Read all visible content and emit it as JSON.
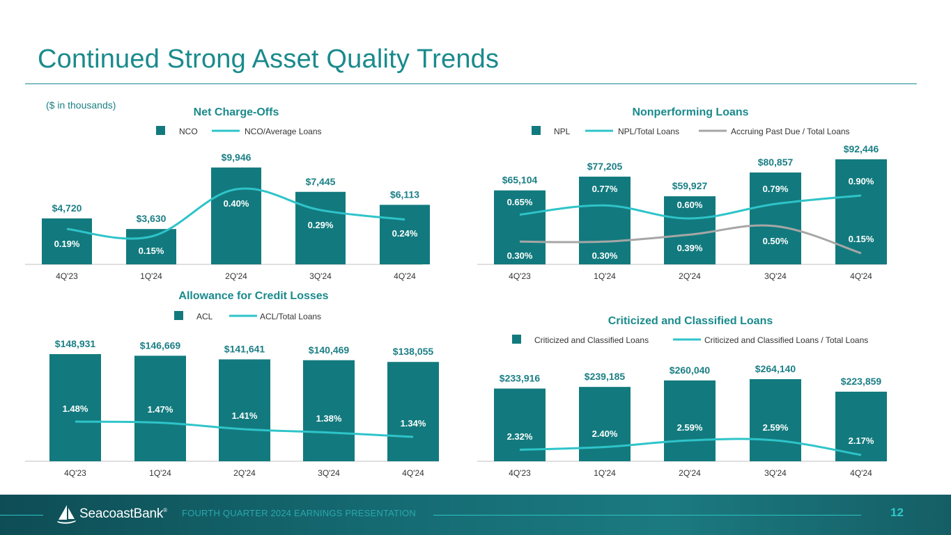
{
  "title": "Continued Strong Asset Quality Trends",
  "units_note": "($ in thousands)",
  "colors": {
    "bar": "#127a7e",
    "line": "#2ec4c9",
    "gray_line": "#a6a6a6",
    "title": "#1a8a8c",
    "label": "#1b7f85"
  },
  "chart_data": [
    {
      "id": "nco",
      "type": "bar",
      "title": "Net Charge-Offs",
      "categories": [
        "4Q'23",
        "1Q'24",
        "2Q'24",
        "3Q'24",
        "4Q'24"
      ],
      "legend": [
        "NCO",
        "NCO/Average Loans"
      ],
      "series": [
        {
          "name": "NCO",
          "kind": "bar",
          "values": [
            4720,
            3630,
            9946,
            7445,
            6113
          ],
          "labels": [
            "$4,720",
            "$3,630",
            "$9,946",
            "$7,445",
            "$6,113"
          ]
        },
        {
          "name": "NCO/Average Loans",
          "kind": "line",
          "values": [
            0.19,
            0.15,
            0.4,
            0.29,
            0.24
          ],
          "labels": [
            "0.19%",
            "0.15%",
            "0.40%",
            "0.29%",
            "0.24%"
          ]
        }
      ]
    },
    {
      "id": "npl",
      "type": "bar",
      "title": "Nonperforming Loans",
      "categories": [
        "4Q'23",
        "1Q'24",
        "2Q'24",
        "3Q'24",
        "4Q'24"
      ],
      "legend": [
        "NPL",
        "NPL/Total Loans",
        "Accruing Past Due  / Total Loans"
      ],
      "series": [
        {
          "name": "NPL",
          "kind": "bar",
          "values": [
            65104,
            77205,
            59927,
            80857,
            92446
          ],
          "labels": [
            "$65,104",
            "$77,205",
            "$59,927",
            "$80,857",
            "$92,446"
          ]
        },
        {
          "name": "NPL/Total Loans",
          "kind": "line",
          "values": [
            0.65,
            0.77,
            0.6,
            0.79,
            0.9
          ],
          "labels": [
            "0.65%",
            "0.77%",
            "0.60%",
            "0.79%",
            "0.90%"
          ]
        },
        {
          "name": "Accruing Past Due  / Total Loans",
          "kind": "line",
          "values": [
            0.3,
            0.3,
            0.39,
            0.5,
            0.15
          ],
          "labels": [
            "0.30%",
            "0.30%",
            "0.39%",
            "0.50%",
            "0.15%"
          ]
        }
      ]
    },
    {
      "id": "acl",
      "type": "bar",
      "title": "Allowance for Credit Losses",
      "categories": [
        "4Q'23",
        "1Q'24",
        "2Q'24",
        "3Q'24",
        "4Q'24"
      ],
      "legend": [
        "ACL",
        "ACL/Total Loans"
      ],
      "series": [
        {
          "name": "ACL",
          "kind": "bar",
          "values": [
            148931,
            146669,
            141641,
            140469,
            138055
          ],
          "labels": [
            "$148,931",
            "$146,669",
            "$141,641",
            "$140,469",
            "$138,055"
          ]
        },
        {
          "name": "ACL/Total Loans",
          "kind": "line",
          "values": [
            1.48,
            1.47,
            1.41,
            1.38,
            1.34
          ],
          "labels": [
            "1.48%",
            "1.47%",
            "1.41%",
            "1.38%",
            "1.34%"
          ]
        }
      ]
    },
    {
      "id": "cc",
      "type": "bar",
      "title": "Criticized and Classified Loans",
      "categories": [
        "4Q'23",
        "1Q'24",
        "2Q'24",
        "3Q'24",
        "4Q'24"
      ],
      "legend": [
        "Criticized and Classified Loans",
        "Criticized and Classified Loans  / Total Loans"
      ],
      "series": [
        {
          "name": "Criticized and Classified Loans",
          "kind": "bar",
          "values": [
            233916,
            239185,
            260040,
            264140,
            223859
          ],
          "labels": [
            "$233,916",
            "$239,185",
            "$260,040",
            "$264,140",
            "$223,859"
          ]
        },
        {
          "name": "Criticized and Classified Loans  / Total Loans",
          "kind": "line",
          "values": [
            2.32,
            2.4,
            2.59,
            2.59,
            2.17
          ],
          "labels": [
            "2.32%",
            "2.40%",
            "2.59%",
            "2.59%",
            "2.17%"
          ]
        }
      ]
    }
  ],
  "footer": {
    "logo_text": "SeacoastBank",
    "logo_mark": "®",
    "presentation": "FOURTH QUARTER 2024 EARNINGS PRESENTATION",
    "page": "12"
  }
}
